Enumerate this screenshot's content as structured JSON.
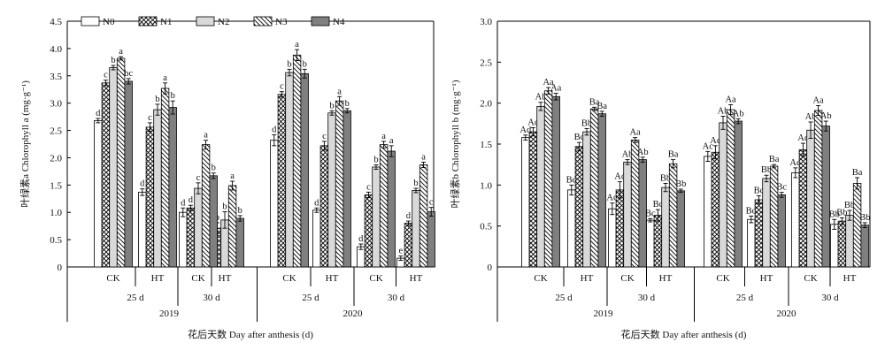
{
  "palette": {
    "N0": "#ffffff",
    "N1": "pattern-crosshatch",
    "N2": "#d9d9d9",
    "N3": "pattern-diagonal",
    "N4": "#7f7f7f"
  },
  "chart_data": [
    {
      "type": "bar",
      "ylabel": "叶绿素a Chlorophyll a (mg·g⁻¹)",
      "xlabel": "花后天数 Day after anthesis (d)",
      "ylim": [
        0,
        4.5
      ],
      "yticks": [
        "0",
        "0.5",
        "1.0",
        "1.5",
        "2.0",
        "2.5",
        "3.0",
        "3.5",
        "4.0",
        "4.5"
      ],
      "legend": {
        "placement": "top-left",
        "entries": [
          "N0",
          "N1",
          "N2",
          "N3",
          "N4"
        ]
      },
      "categories": [
        "CK",
        "HT",
        "CK",
        "HT",
        "CK",
        "HT",
        "CK",
        "HT"
      ],
      "days": [
        "25 d",
        "30 d",
        "25 d",
        "30 d"
      ],
      "years": [
        "2019",
        "2020"
      ],
      "series": [
        {
          "name": "N0",
          "values": [
            2.68,
            1.37,
            1.0,
            0.78,
            2.32,
            1.04,
            0.37,
            0.16
          ],
          "errors": [
            0.04,
            0.06,
            0.08,
            0.04,
            0.1,
            0.04,
            0.05,
            0.04
          ],
          "labels": [
            "d",
            "d",
            "d",
            "b",
            "d",
            "d",
            "d",
            "e"
          ]
        },
        {
          "name": "N1",
          "values": [
            3.37,
            2.56,
            1.08,
            0.71,
            3.16,
            2.22,
            1.32,
            0.8
          ],
          "errors": [
            0.05,
            0.08,
            0.05,
            0.1,
            0.05,
            0.08,
            0.05,
            0.04
          ],
          "labels": [
            "c",
            "c",
            "d",
            "b",
            "c",
            "c",
            "c",
            "d"
          ]
        },
        {
          "name": "N2",
          "values": [
            3.65,
            2.88,
            1.44,
            0.86,
            3.56,
            2.82,
            1.83,
            1.4
          ],
          "errors": [
            0.04,
            0.1,
            0.1,
            0.15,
            0.06,
            0.04,
            0.04,
            0.04
          ],
          "labels": [
            "b",
            "b",
            "c",
            "b",
            "b",
            "b",
            "b",
            "b"
          ]
        },
        {
          "name": "N3",
          "values": [
            3.82,
            3.27,
            2.24,
            1.49,
            3.88,
            3.04,
            2.24,
            1.87
          ],
          "errors": [
            0.03,
            0.1,
            0.08,
            0.08,
            0.1,
            0.08,
            0.06,
            0.05
          ],
          "labels": [
            "a",
            "a",
            "a",
            "a",
            "a",
            "a",
            "a",
            "a"
          ]
        },
        {
          "name": "N4",
          "values": [
            3.4,
            2.92,
            1.67,
            0.89,
            3.54,
            2.86,
            2.12,
            1.01
          ],
          "errors": [
            0.05,
            0.12,
            0.05,
            0.05,
            0.08,
            0.04,
            0.1,
            0.08
          ],
          "labels": [
            "bc",
            "b",
            "b",
            "b",
            "b",
            "b",
            "a",
            "c"
          ]
        }
      ]
    },
    {
      "type": "bar",
      "ylabel": "叶绿素b Chlorophyll b (mg·g⁻¹)",
      "xlabel": "花后天数 Day after anthesis (d)",
      "ylim": [
        0,
        3.0
      ],
      "yticks": [
        "0",
        "0.5",
        "1.0",
        "1.5",
        "2.0",
        "2.5",
        "3.0"
      ],
      "categories": [
        "CK",
        "HT",
        "CK",
        "HT",
        "CK",
        "HT",
        "CK",
        "HT"
      ],
      "days": [
        "25 d",
        "30 d",
        "25 d",
        "30 d"
      ],
      "years": [
        "2019",
        "2020"
      ],
      "series": [
        {
          "name": "N0",
          "values": [
            1.58,
            0.94,
            0.71,
            0.57,
            1.35,
            0.58,
            1.15,
            0.52
          ],
          "errors": [
            0.03,
            0.06,
            0.07,
            0.02,
            0.06,
            0.04,
            0.06,
            0.06
          ],
          "labels": [
            "Ad",
            "Bd",
            "Ad",
            "Bc",
            "Ac",
            "Bd",
            "Ad",
            "Bb"
          ]
        },
        {
          "name": "N1",
          "values": [
            1.65,
            1.47,
            0.94,
            0.63,
            1.4,
            0.82,
            1.43,
            0.56
          ],
          "errors": [
            0.05,
            0.05,
            0.1,
            0.07,
            0.08,
            0.05,
            0.08,
            0.04
          ],
          "labels": [
            "Ac",
            "Bc",
            "Ac",
            "Bc",
            "Ac",
            "Bc",
            "Ac",
            "Bb"
          ]
        },
        {
          "name": "N2",
          "values": [
            1.96,
            1.65,
            1.28,
            0.97,
            1.76,
            1.08,
            1.67,
            0.63
          ],
          "errors": [
            0.05,
            0.04,
            0.03,
            0.05,
            0.08,
            0.04,
            0.1,
            0.06
          ],
          "labels": [
            "Ab",
            "Bb",
            "Ab",
            "Bb",
            "Ab",
            "Bb",
            "Ab",
            "Bb"
          ]
        },
        {
          "name": "N3",
          "values": [
            2.15,
            1.93,
            1.55,
            1.26,
            1.92,
            1.23,
            1.91,
            1.02
          ],
          "errors": [
            0.04,
            0.02,
            0.03,
            0.05,
            0.06,
            0.02,
            0.06,
            0.07
          ],
          "labels": [
            "Aa",
            "Ba",
            "Aa",
            "Ba",
            "Aa",
            "Ba",
            "Aa",
            "Ba"
          ]
        },
        {
          "name": "N4",
          "values": [
            2.08,
            1.87,
            1.31,
            0.93,
            1.78,
            0.88,
            1.72,
            0.51
          ],
          "errors": [
            0.04,
            0.03,
            0.03,
            0.02,
            0.03,
            0.03,
            0.06,
            0.03
          ],
          "labels": [
            "Aa",
            "Ba",
            "Ab",
            "Bb",
            "Ab",
            "Bc",
            "Ab",
            "Bb"
          ]
        }
      ]
    }
  ]
}
